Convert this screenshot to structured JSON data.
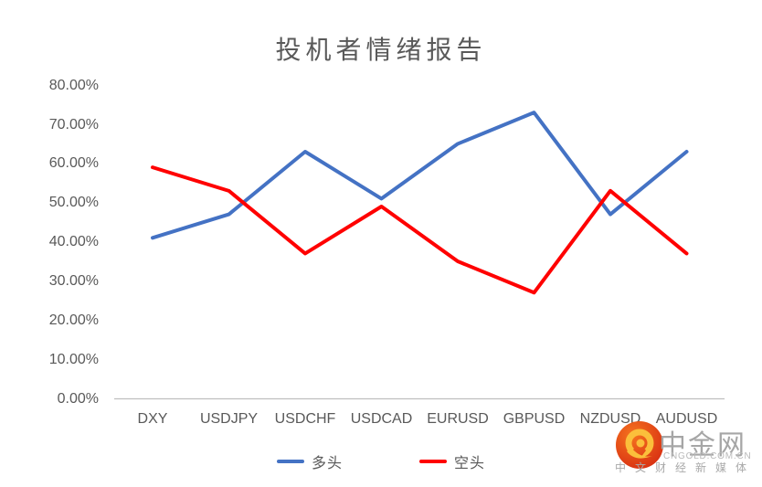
{
  "chart_data": {
    "type": "line",
    "title": "投机者情绪报告",
    "categories": [
      "DXY",
      "USDJPY",
      "USDCHF",
      "USDCAD",
      "EURUSD",
      "GBPUSD",
      "NZDUSD",
      "AUDUSD"
    ],
    "series": [
      {
        "name": "多头",
        "color": "#4472C4",
        "values": [
          41,
          47,
          63,
          51,
          65,
          73,
          47,
          63
        ]
      },
      {
        "name": "空头",
        "color": "#FF0000",
        "values": [
          59,
          53,
          37,
          49,
          35,
          27,
          53,
          37
        ]
      }
    ],
    "y_axis": {
      "min": 0,
      "max": 80,
      "step": 10,
      "tick_labels": [
        "0.00%",
        "10.00%",
        "20.00%",
        "30.00%",
        "40.00%",
        "50.00%",
        "60.00%",
        "70.00%",
        "80.00%"
      ]
    },
    "grid": false,
    "legend_position": "bottom"
  },
  "watermark": {
    "site_name": "中金网",
    "domain": "CNGOLD.COM.CN",
    "tagline": "中文财经新媒体",
    "logo_colors": {
      "circle_inner": "#F5731E",
      "circle_outer": "#D72D12",
      "swirl": "#FBBF3B"
    }
  },
  "colors": {
    "text": "#595959",
    "axis_line": "#BFBFBF"
  }
}
